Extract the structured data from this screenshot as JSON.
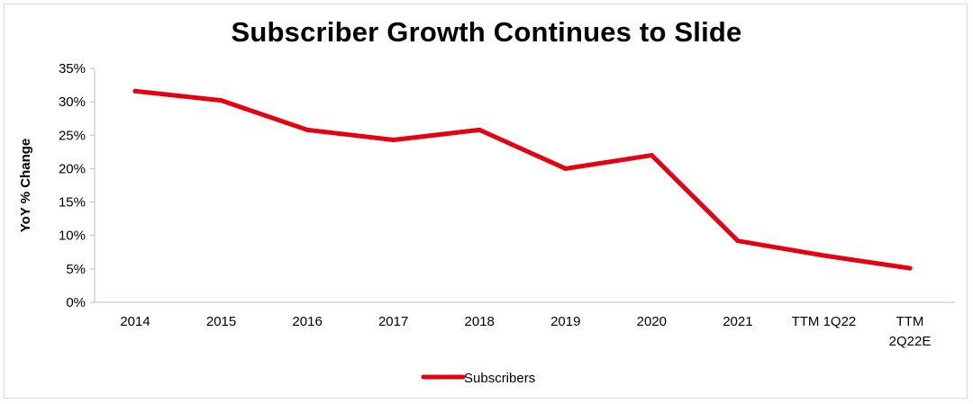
{
  "chart_data": {
    "type": "line",
    "title": "Subscriber Growth Continues to Slide",
    "xlabel": "",
    "ylabel": "YoY %  Change",
    "categories": [
      "2014",
      "2015",
      "2016",
      "2017",
      "2018",
      "2019",
      "2020",
      "2021",
      "TTM 1Q22",
      "TTM 2Q22E"
    ],
    "category_lines": [
      [
        "2014"
      ],
      [
        "2015"
      ],
      [
        "2016"
      ],
      [
        "2017"
      ],
      [
        "2018"
      ],
      [
        "2019"
      ],
      [
        "2020"
      ],
      [
        "2021"
      ],
      [
        "TTM 1Q22"
      ],
      [
        "TTM",
        "2Q22E"
      ]
    ],
    "series": [
      {
        "name": "Subscribers",
        "color": "#e60012",
        "values": [
          31.6,
          30.2,
          25.8,
          24.3,
          25.8,
          20.0,
          22.0,
          9.2,
          7.0,
          5.1
        ]
      }
    ],
    "ylim": [
      0,
      35
    ],
    "yticks": [
      0,
      5,
      10,
      15,
      20,
      25,
      30,
      35
    ],
    "ytick_labels": [
      "0%",
      "5%",
      "10%",
      "15%",
      "20%",
      "25%",
      "30%",
      "35%"
    ],
    "grid": false,
    "legend": "bottom-center"
  }
}
